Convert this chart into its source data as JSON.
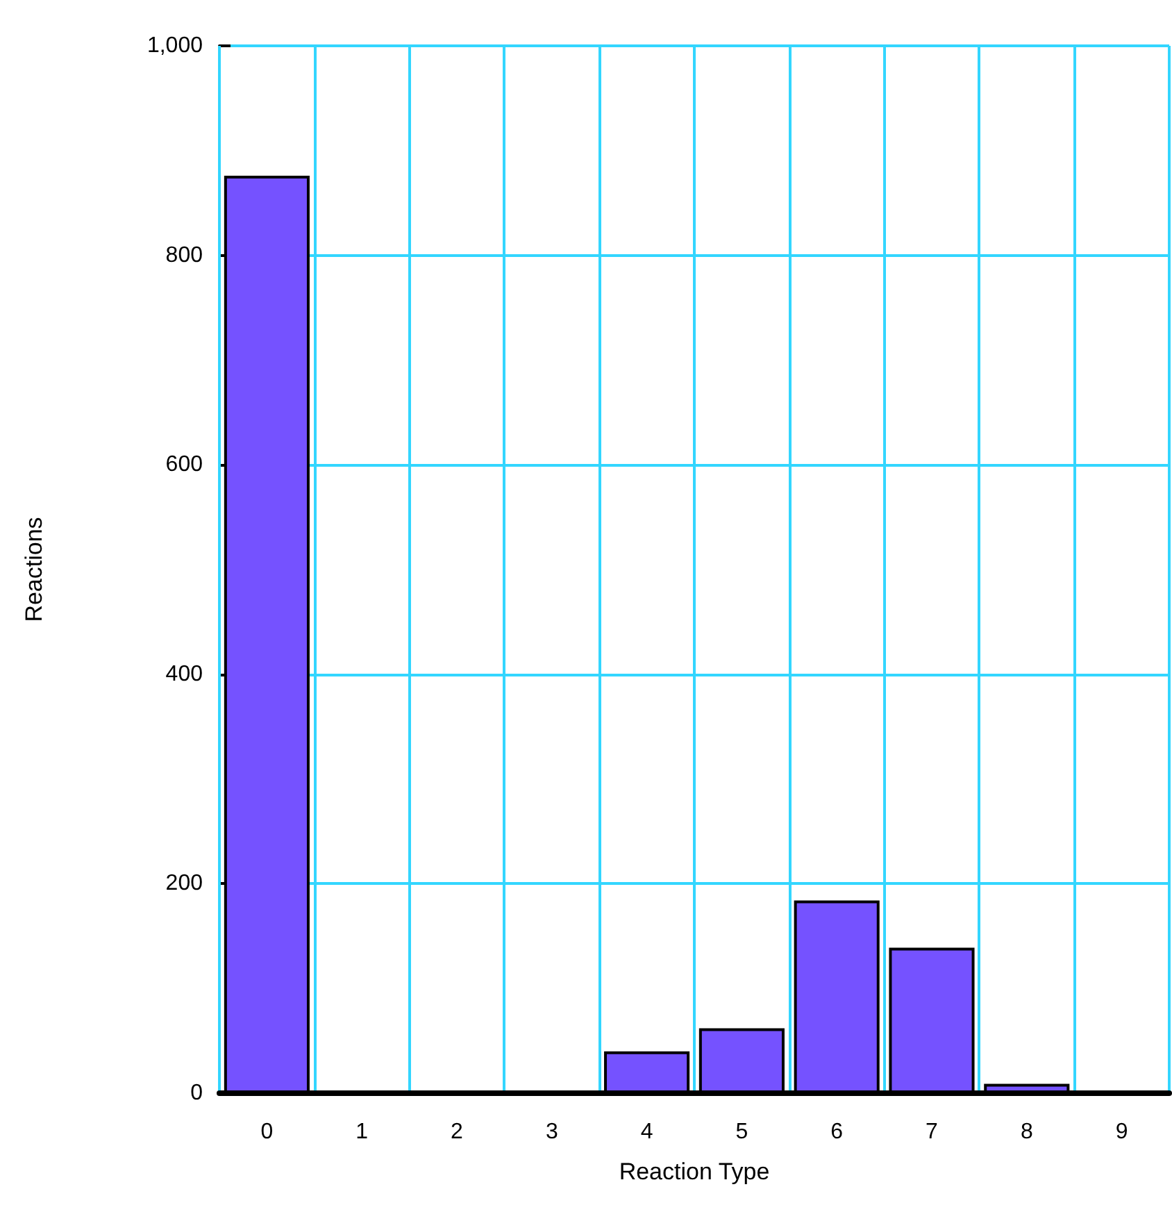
{
  "chart_data": {
    "type": "bar",
    "xlabel": "Reaction Type",
    "ylabel": "Reactions",
    "categories": [
      "0",
      "1",
      "2",
      "3",
      "4",
      "5",
      "6",
      "7",
      "8",
      "9"
    ],
    "values": [
      876,
      0,
      0,
      0,
      40,
      62,
      184,
      139,
      9,
      0
    ],
    "color": "#7552ff",
    "ylim": [
      0,
      1000
    ],
    "yticks": [
      0,
      200,
      400,
      600,
      800,
      {
        "value": 1000,
        "label": "1,000"
      }
    ],
    "grid": true
  }
}
